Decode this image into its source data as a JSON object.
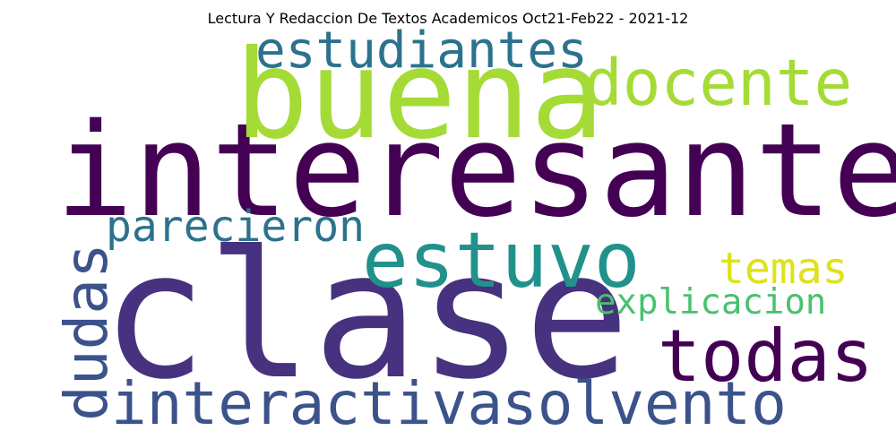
{
  "title": "Lectura Y Redaccion De Textos Academicos Oct21-Feb22 - 2021-12",
  "words": [
    {
      "text": "clase",
      "color": "#46327e",
      "orientation": "horizontal"
    },
    {
      "text": "interesante",
      "color": "#440154",
      "orientation": "horizontal"
    },
    {
      "text": "buena",
      "color": "#a5db36",
      "orientation": "horizontal"
    },
    {
      "text": "estuvo",
      "color": "#21918c",
      "orientation": "horizontal"
    },
    {
      "text": "interactiva",
      "color": "#3b528b",
      "orientation": "horizontal"
    },
    {
      "text": "solvento",
      "color": "#3b528b",
      "orientation": "horizontal"
    },
    {
      "text": "todas",
      "color": "#440154",
      "orientation": "horizontal"
    },
    {
      "text": "dudas",
      "color": "#3b528b",
      "orientation": "vertical"
    },
    {
      "text": "docente",
      "color": "#a5db36",
      "orientation": "horizontal"
    },
    {
      "text": "estudiantes",
      "color": "#2c728e",
      "orientation": "horizontal"
    },
    {
      "text": "parecieron",
      "color": "#2c728e",
      "orientation": "horizontal"
    },
    {
      "text": "temas",
      "color": "#dde318",
      "orientation": "horizontal"
    },
    {
      "text": "explicacion",
      "color": "#4ac16d",
      "orientation": "horizontal"
    }
  ]
}
